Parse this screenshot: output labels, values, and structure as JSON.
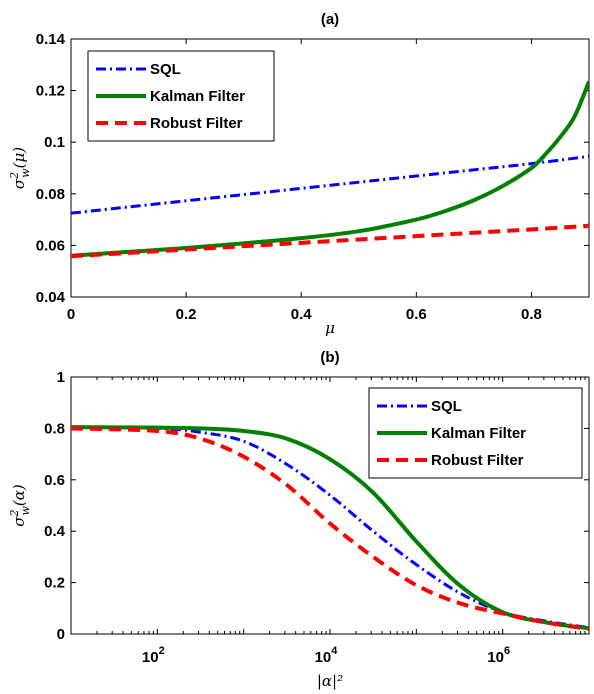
{
  "chart_data": [
    {
      "type": "line",
      "title": "(a)",
      "xlabel": "μ",
      "ylabel": "σ_w^2(μ)",
      "xlim": [
        0,
        0.9
      ],
      "ylim": [
        0.04,
        0.14
      ],
      "xticks": [
        0,
        0.2,
        0.4,
        0.6,
        0.8
      ],
      "xtick_labels": [
        "0",
        "0.2",
        "0.4",
        "0.6",
        "0.8"
      ],
      "yticks": [
        0.04,
        0.06,
        0.08,
        0.1,
        0.12,
        0.14
      ],
      "ytick_labels": [
        "0.04",
        "0.06",
        "0.08",
        "0.1",
        "0.12",
        "0.14"
      ],
      "legend_position": "top-left",
      "grid": false,
      "series": [
        {
          "name": "SQL",
          "color": "#0000ff",
          "style": "dashdot",
          "x": [
            0,
            0.1,
            0.2,
            0.3,
            0.4,
            0.5,
            0.6,
            0.7,
            0.8,
            0.9
          ],
          "y": [
            0.0725,
            0.0749,
            0.0773,
            0.0797,
            0.0821,
            0.0845,
            0.0869,
            0.0893,
            0.0917,
            0.0945
          ]
        },
        {
          "name": "Kalman Filter",
          "color": "#008000",
          "style": "solid",
          "x": [
            0,
            0.1,
            0.2,
            0.3,
            0.4,
            0.5,
            0.6,
            0.65,
            0.7,
            0.75,
            0.8,
            0.825,
            0.85,
            0.875,
            0.9
          ],
          "y": [
            0.056,
            0.0575,
            0.059,
            0.0608,
            0.0628,
            0.0655,
            0.07,
            0.0733,
            0.0775,
            0.083,
            0.09,
            0.0955,
            0.102,
            0.11,
            0.1235
          ]
        },
        {
          "name": "Robust Filter",
          "color": "#ff0000",
          "style": "dashed",
          "x": [
            0,
            0.1,
            0.2,
            0.3,
            0.4,
            0.5,
            0.6,
            0.7,
            0.8,
            0.9
          ],
          "y": [
            0.0558,
            0.0571,
            0.0584,
            0.0597,
            0.061,
            0.0623,
            0.0636,
            0.0649,
            0.0662,
            0.0676
          ]
        }
      ]
    },
    {
      "type": "line",
      "title": "(b)",
      "xlabel": "|α|²",
      "ylabel": "σ_w^2(α)",
      "xscale": "log",
      "xlim": [
        10,
        10000000
      ],
      "ylim": [
        0,
        1
      ],
      "xticks": [
        100,
        10000,
        1000000
      ],
      "xtick_labels": [
        {
          "base": "10",
          "exp": "2"
        },
        {
          "base": "10",
          "exp": "4"
        },
        {
          "base": "10",
          "exp": "6"
        }
      ],
      "yticks": [
        0,
        0.2,
        0.4,
        0.6,
        0.8,
        1
      ],
      "ytick_labels": [
        "0",
        "0.2",
        "0.4",
        "0.6",
        "0.8",
        "1"
      ],
      "legend_position": "top-right",
      "grid": false,
      "series": [
        {
          "name": "SQL",
          "color": "#0000ff",
          "style": "dashdot",
          "x": [
            10,
            100,
            316,
            1000,
            3162,
            10000,
            31623,
            100000,
            316228,
            1000000,
            3162278,
            10000000
          ],
          "y": [
            0.805,
            0.8,
            0.785,
            0.75,
            0.66,
            0.54,
            0.4,
            0.27,
            0.16,
            0.085,
            0.05,
            0.025
          ]
        },
        {
          "name": "Kalman Filter",
          "color": "#008000",
          "style": "solid",
          "x": [
            10,
            100,
            316,
            1000,
            3162,
            10000,
            31623,
            100000,
            316228,
            1000000,
            3162278,
            10000000
          ],
          "y": [
            0.805,
            0.803,
            0.8,
            0.79,
            0.76,
            0.68,
            0.55,
            0.36,
            0.19,
            0.085,
            0.045,
            0.022
          ]
        },
        {
          "name": "Robust Filter",
          "color": "#ff0000",
          "style": "dashed",
          "x": [
            10,
            100,
            316,
            1000,
            3162,
            10000,
            31623,
            100000,
            316228,
            1000000,
            3162278,
            10000000
          ],
          "y": [
            0.8,
            0.79,
            0.76,
            0.69,
            0.58,
            0.43,
            0.3,
            0.19,
            0.12,
            0.08,
            0.045,
            0.02
          ]
        }
      ]
    }
  ]
}
